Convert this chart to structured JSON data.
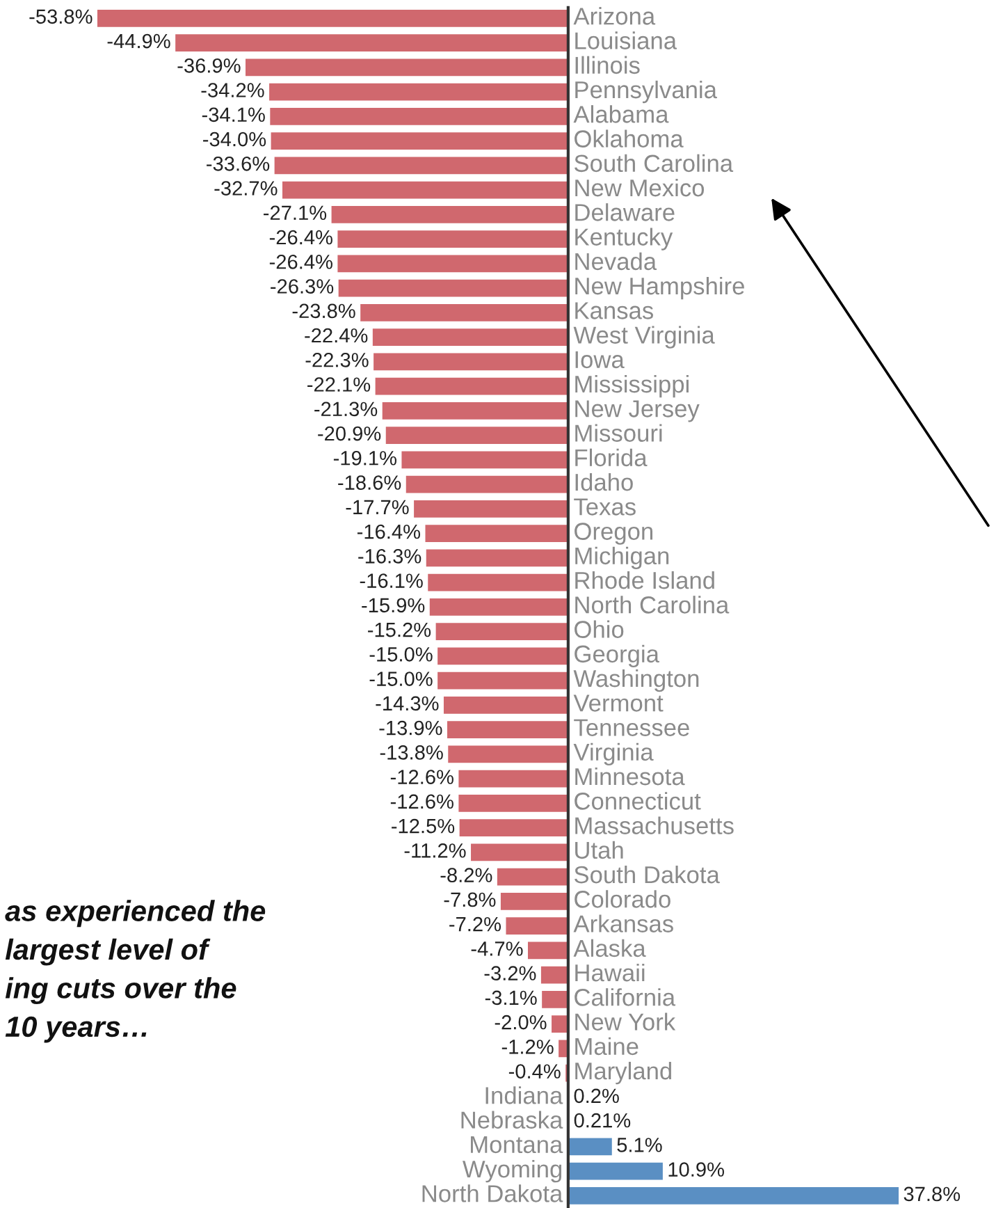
{
  "chart_data": {
    "type": "bar",
    "orientation": "horizontal",
    "categories": [
      "Arizona",
      "Louisiana",
      "Illinois",
      "Pennsylvania",
      "Alabama",
      "Oklahoma",
      "South Carolina",
      "New Mexico",
      "Delaware",
      "Kentucky",
      "Nevada",
      "New Hampshire",
      "Kansas",
      "West Virginia",
      "Iowa",
      "Mississippi",
      "New Jersey",
      "Missouri",
      "Florida",
      "Idaho",
      "Texas",
      "Oregon",
      "Michigan",
      "Rhode Island",
      "North Carolina",
      "Ohio",
      "Georgia",
      "Washington",
      "Vermont",
      "Tennessee",
      "Virginia",
      "Minnesota",
      "Connecticut",
      "Massachusetts",
      "Utah",
      "South Dakota",
      "Colorado",
      "Arkansas",
      "Alaska",
      "Hawaii",
      "California",
      "New York",
      "Maine",
      "Maryland",
      "Indiana",
      "Nebraska",
      "Montana",
      "Wyoming",
      "North Dakota"
    ],
    "values": [
      -53.8,
      -44.9,
      -36.9,
      -34.2,
      -34.1,
      -34.0,
      -33.6,
      -32.7,
      -27.1,
      -26.4,
      -26.4,
      -26.3,
      -23.8,
      -22.4,
      -22.3,
      -22.1,
      -21.3,
      -20.9,
      -19.1,
      -18.6,
      -17.7,
      -16.4,
      -16.3,
      -16.1,
      -15.9,
      -15.2,
      -15.0,
      -15.0,
      -14.3,
      -13.9,
      -13.8,
      -12.6,
      -12.6,
      -12.5,
      -11.2,
      -8.2,
      -7.8,
      -7.2,
      -4.7,
      -3.2,
      -3.1,
      -2.0,
      -1.2,
      -0.4,
      0.2,
      0.21,
      5.1,
      10.9,
      37.8
    ],
    "value_labels": [
      "-53.8%",
      "-44.9%",
      "-36.9%",
      "-34.2%",
      "-34.1%",
      "-34.0%",
      "-33.6%",
      "-32.7%",
      "-27.1%",
      "-26.4%",
      "-26.4%",
      "-26.3%",
      "-23.8%",
      "-22.4%",
      "-22.3%",
      "-22.1%",
      "-21.3%",
      "-20.9%",
      "-19.1%",
      "-18.6%",
      "-17.7%",
      "-16.4%",
      "-16.3%",
      "-16.1%",
      "-15.9%",
      "-15.2%",
      "-15.0%",
      "-15.0%",
      "-14.3%",
      "-13.9%",
      "-13.8%",
      "-12.6%",
      "-12.6%",
      "-12.5%",
      "-11.2%",
      "-8.2%",
      "-7.8%",
      "-7.2%",
      "-4.7%",
      "-3.2%",
      "-3.1%",
      "-2.0%",
      "-1.2%",
      "-0.4%",
      "0.2%",
      "0.21%",
      "5.1%",
      "10.9%",
      "37.8%"
    ],
    "colors": [
      "#d0686e",
      "#d0686e",
      "#d0686e",
      "#d0686e",
      "#d0686e",
      "#d0686e",
      "#d0686e",
      "#d0686e",
      "#d0686e",
      "#d0686e",
      "#d0686e",
      "#d0686e",
      "#d0686e",
      "#d0686e",
      "#d0686e",
      "#d0686e",
      "#d0686e",
      "#d0686e",
      "#d0686e",
      "#d0686e",
      "#d0686e",
      "#d0686e",
      "#d0686e",
      "#d0686e",
      "#d0686e",
      "#d0686e",
      "#d0686e",
      "#d0686e",
      "#d0686e",
      "#d0686e",
      "#d0686e",
      "#d0686e",
      "#d0686e",
      "#d0686e",
      "#d0686e",
      "#d0686e",
      "#d0686e",
      "#d0686e",
      "#d0686e",
      "#d0686e",
      "#d0686e",
      "#d0686e",
      "#d0686e",
      "#d0686e",
      "#5a8fc3",
      "#5a8fc3",
      "#5a8fc3",
      "#5a8fc3",
      "#5a8fc3"
    ],
    "annotations": [
      "as experienced the\nlargest level of\ning cuts over the\n10 years…"
    ],
    "legend": false
  }
}
